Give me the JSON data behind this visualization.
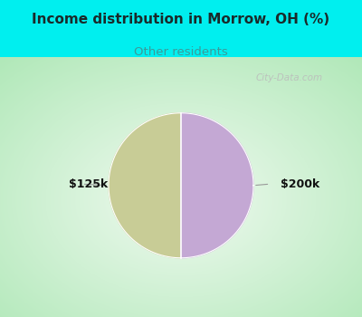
{
  "title": "Income distribution in Morrow, OH (%)",
  "subtitle": "Other residents",
  "slices": [
    50,
    50
  ],
  "slice_colors": [
    "#c8cc96",
    "#c4a8d4"
  ],
  "slice_labels": [
    "$125k",
    "$200k"
  ],
  "header_bg": "#00efef",
  "title_color": "#1a2a2a",
  "subtitle_color": "#3a9a9a",
  "title_fontsize": 11,
  "subtitle_fontsize": 9.5,
  "label_fontsize": 9,
  "watermark": "City-Data.com",
  "watermark_color": "#aaaaaa",
  "chart_bg_inner": "#f0faf0",
  "chart_bg_outer": "#b0e8b8"
}
